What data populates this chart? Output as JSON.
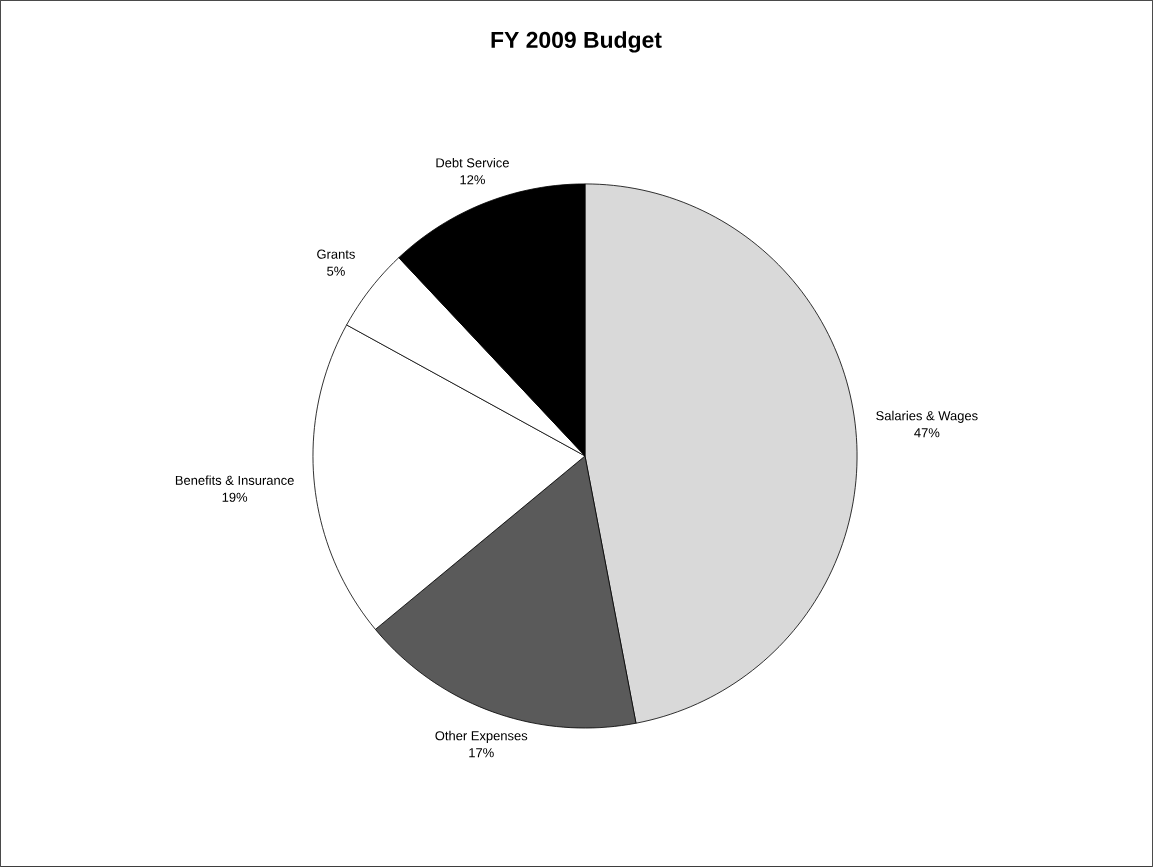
{
  "chart_data": {
    "type": "pie",
    "title": "FY 2009 Budget",
    "categories": [
      "Salaries & Wages",
      "Other Expenses",
      "Benefits & Insurance",
      "Grants",
      "Debt Service"
    ],
    "values": [
      47,
      17,
      19,
      5,
      12
    ],
    "value_labels": [
      "47%",
      "17%",
      "19%",
      "5%",
      "12%"
    ],
    "colors": [
      "#d9d9d9",
      "#5a5a5a",
      "#ffffff",
      "#ffffff",
      "#000000"
    ]
  }
}
